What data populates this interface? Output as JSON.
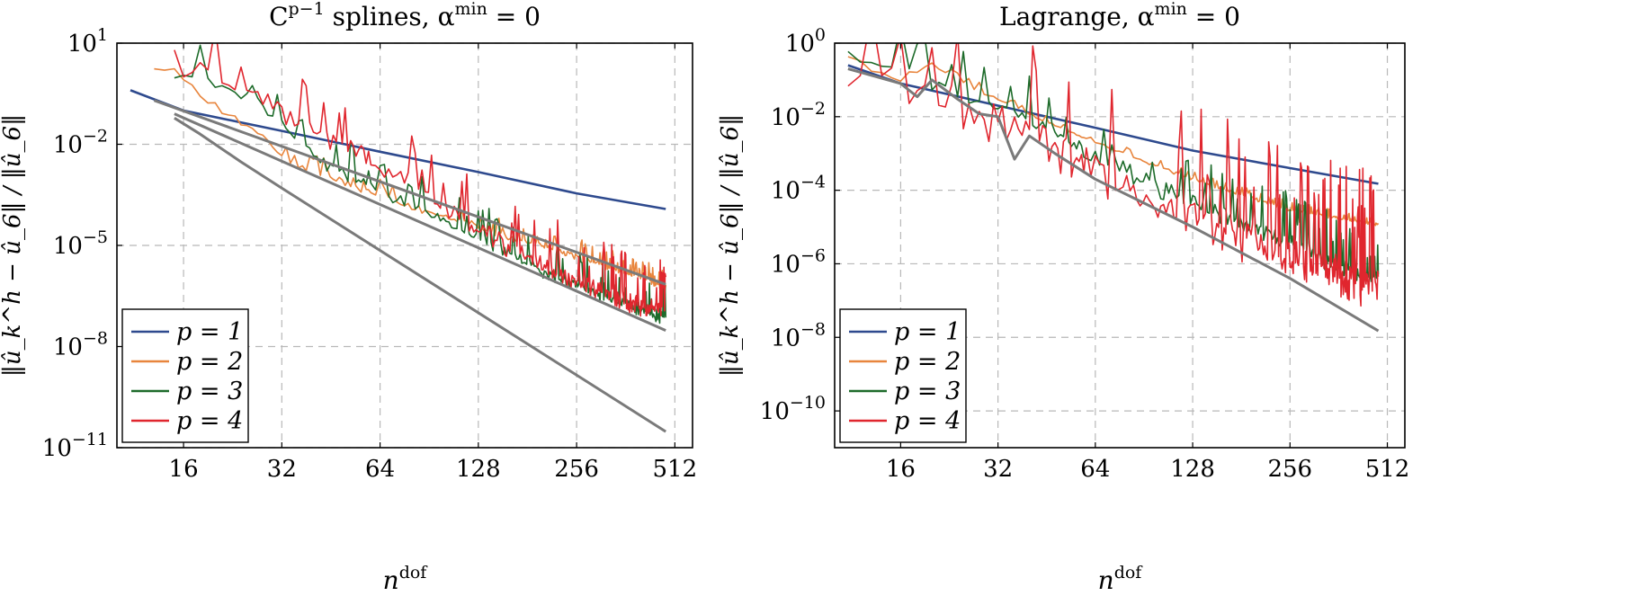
{
  "chart_data": [
    {
      "type": "line",
      "title": "C^{p−1} splines, α^{min} = 0",
      "title_parts": {
        "main": "C",
        "sup1": "p−1",
        "rest": " splines, α",
        "sup2": "min",
        "end": " = 0"
      },
      "xlabel": {
        "main": "n",
        "sup": "dof"
      },
      "ylabel": "‖û_k^h − û_6‖ / ‖û_6‖",
      "x_scale": "log2",
      "y_scale": "log10",
      "xlim": [
        10,
        580
      ],
      "ylim": [
        1e-11,
        10
      ],
      "x_ticks": [
        16,
        32,
        64,
        128,
        256,
        512
      ],
      "x_tick_labels": [
        "16",
        "32",
        "64",
        "128",
        "256",
        "512"
      ],
      "y_ticks": [
        1e-11,
        1e-08,
        1e-05,
        0.01,
        10
      ],
      "y_tick_labels": [
        {
          "base": "10",
          "exp": "−11"
        },
        {
          "base": "10",
          "exp": "−8"
        },
        {
          "base": "10",
          "exp": "−5"
        },
        {
          "base": "10",
          "exp": "−2"
        },
        {
          "base": "10",
          "exp": "1"
        }
      ],
      "grid": true,
      "legend_position": "bottom-left",
      "legend": [
        {
          "label": "p = 1",
          "color": "#2e4a8e"
        },
        {
          "label": "p = 2",
          "color": "#e8853d"
        },
        {
          "label": "p = 3",
          "color": "#1d6b2a"
        },
        {
          "label": "p = 4",
          "color": "#e0262e"
        }
      ],
      "series": [
        {
          "name": "p = 1",
          "color": "#2e4a8e",
          "kind": "smooth",
          "x": [
            11,
            16,
            32,
            64,
            128,
            256,
            480
          ],
          "y": [
            0.4,
            0.1,
            0.025,
            0.006,
            0.0015,
            0.00035,
            0.00012
          ]
        },
        {
          "name": "p = 2",
          "color": "#e8853d",
          "kind": "noisy",
          "x": [
            13,
            15,
            18,
            22,
            28,
            32,
            40,
            50,
            64,
            80,
            100,
            128,
            160,
            200,
            256,
            320,
            400,
            480
          ],
          "y": [
            1.5,
            1.5,
            0.3,
            0.08,
            0.02,
            0.004,
            0.0015,
            0.0008,
            0.0003,
            0.00015,
            8e-05,
            4e-05,
            1.8e-05,
            1e-05,
            5e-06,
            2.5e-06,
            1.2e-06,
            6e-07
          ],
          "noise": 0.35,
          "seed": 3
        },
        {
          "name": "p = 3",
          "color": "#1d6b2a",
          "kind": "noisy",
          "x": [
            15,
            18,
            22,
            28,
            32,
            40,
            50,
            64,
            80,
            100,
            128,
            160,
            200,
            256,
            320,
            400,
            480
          ],
          "y": [
            1.0,
            1.5,
            0.4,
            0.15,
            0.05,
            0.005,
            0.0015,
            0.0005,
            0.00018,
            6e-05,
            2e-05,
            6e-06,
            2e-06,
            8e-07,
            3e-07,
            1.5e-07,
            8e-08
          ],
          "noise": 0.7,
          "seed": 7
        },
        {
          "name": "p = 4",
          "color": "#e0262e",
          "kind": "noisy",
          "x": [
            15,
            18,
            22,
            28,
            32,
            40,
            50,
            64,
            80,
            100,
            128,
            160,
            200,
            256,
            320,
            400,
            480
          ],
          "y": [
            1.0,
            2.0,
            0.6,
            0.3,
            0.1,
            0.03,
            0.01,
            0.003,
            0.0008,
            0.00015,
            4e-05,
            1e-05,
            3e-06,
            1e-06,
            4e-07,
            2e-07,
            1.2e-07
          ],
          "noise": 1.0,
          "seed": 11
        },
        {
          "name": "",
          "color": "#7a7a7a",
          "kind": "ref",
          "x": [
            13,
            480
          ],
          "y": [
            0.2,
            7e-07
          ]
        },
        {
          "name": "",
          "color": "#7a7a7a",
          "kind": "ref",
          "x": [
            15,
            480
          ],
          "y": [
            0.08,
            3e-08
          ]
        },
        {
          "name": "",
          "color": "#7a7a7a",
          "kind": "ref",
          "x": [
            15,
            18,
            24,
            32,
            480
          ],
          "y": [
            0.06,
            0.02,
            0.003,
            0.0005,
            3e-11
          ]
        }
      ]
    },
    {
      "type": "line",
      "title": "Lagrange, α^{min} = 0",
      "title_parts": {
        "main": "Lagrange, α",
        "sup1": "min",
        "rest": " = 0",
        "sup2": "",
        "end": ""
      },
      "xlabel": {
        "main": "n",
        "sup": "dof"
      },
      "ylabel": "‖û_k^h − û_6‖ / ‖û_6‖",
      "x_scale": "log2",
      "y_scale": "log10",
      "xlim": [
        10,
        580
      ],
      "ylim": [
        1e-11,
        1
      ],
      "x_ticks": [
        16,
        32,
        64,
        128,
        256,
        512
      ],
      "x_tick_labels": [
        "16",
        "32",
        "64",
        "128",
        "256",
        "512"
      ],
      "y_ticks": [
        1e-10,
        1e-08,
        1e-06,
        0.0001,
        0.01,
        1
      ],
      "y_tick_labels": [
        {
          "base": "10",
          "exp": "−10"
        },
        {
          "base": "10",
          "exp": "−8"
        },
        {
          "base": "10",
          "exp": "−6"
        },
        {
          "base": "10",
          "exp": "−4"
        },
        {
          "base": "10",
          "exp": "−2"
        },
        {
          "base": "10",
          "exp": "0"
        }
      ],
      "grid": true,
      "legend_position": "bottom-left",
      "legend": [
        {
          "label": "p = 1",
          "color": "#2e4a8e"
        },
        {
          "label": "p = 2",
          "color": "#e8853d"
        },
        {
          "label": "p = 3",
          "color": "#1d6b2a"
        },
        {
          "label": "p = 4",
          "color": "#e0262e"
        }
      ],
      "series": [
        {
          "name": "p = 1",
          "color": "#2e4a8e",
          "kind": "smooth",
          "x": [
            11,
            16,
            32,
            64,
            128,
            256,
            480
          ],
          "y": [
            0.25,
            0.08,
            0.02,
            0.005,
            0.0012,
            0.0004,
            0.00015
          ]
        },
        {
          "name": "p = 2",
          "color": "#e8853d",
          "kind": "noisy",
          "x": [
            11,
            16,
            20,
            24,
            32,
            48,
            64,
            128,
            256,
            480
          ],
          "y": [
            0.3,
            0.1,
            0.3,
            0.1,
            0.03,
            0.006,
            0.002,
            0.0002,
            3e-05,
            1.2e-05
          ],
          "noise": 0.15,
          "seed": 5
        },
        {
          "name": "p = 3",
          "color": "#1d6b2a",
          "kind": "noisy",
          "x": [
            11,
            16,
            20,
            24,
            32,
            48,
            64,
            128,
            256,
            400,
            480
          ],
          "y": [
            0.5,
            0.2,
            0.06,
            0.05,
            0.02,
            0.004,
            0.001,
            5e-05,
            4e-06,
            7e-07,
            4e-07
          ],
          "noise": 0.9,
          "seed": 9
        },
        {
          "name": "p = 4",
          "color": "#e0262e",
          "kind": "noisy",
          "x": [
            11,
            16,
            20,
            24,
            32,
            48,
            64,
            128,
            256,
            400,
            480
          ],
          "y": [
            0.35,
            0.1,
            0.05,
            0.03,
            0.01,
            0.002,
            0.0004,
            2e-05,
            2e-06,
            5e-07,
            3e-07
          ],
          "noise": 2.0,
          "seed": 13
        },
        {
          "name": "",
          "color": "#7a7a7a",
          "kind": "ref",
          "x": [
            11,
            16,
            18,
            20,
            24,
            28,
            32,
            36,
            40,
            48,
            64,
            128,
            256,
            480
          ],
          "y": [
            0.2,
            0.08,
            0.035,
            0.1,
            0.03,
            0.012,
            0.01,
            0.0007,
            0.003,
            0.001,
            0.0002,
            1e-05,
            4e-07,
            1.5e-08
          ]
        }
      ]
    }
  ]
}
